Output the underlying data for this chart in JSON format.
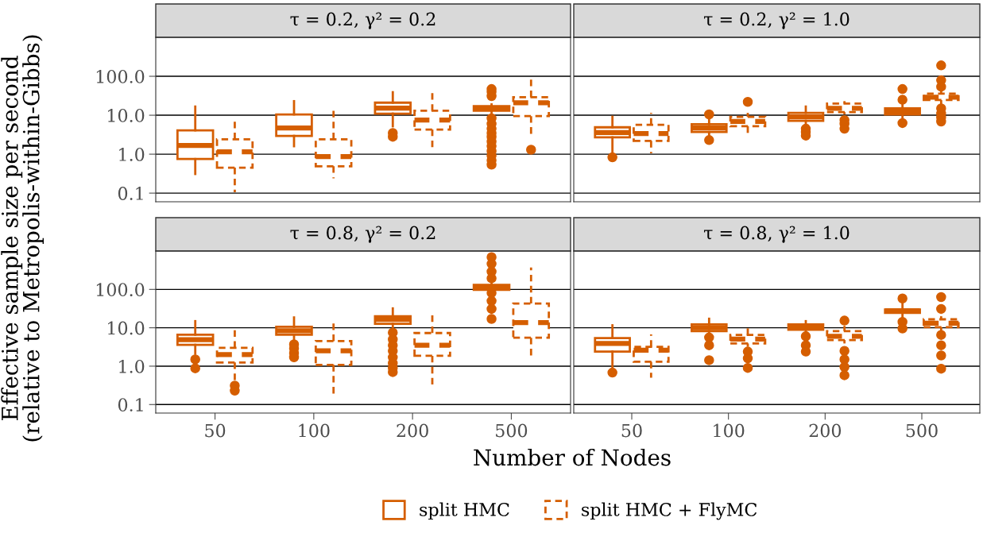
{
  "chart_data": [
    {
      "type": "box",
      "title": "τ = 0.2, γ² = 0.2",
      "ylabel": "Effective sample size per second\n(relative to Metropolis-within-Gibbs)",
      "categories": [
        "50",
        "100",
        "200",
        "500"
      ],
      "log": "y",
      "ylim": [
        0.06,
        1000
      ],
      "yticks": [
        {
          "value": 0.1,
          "label": "0.1"
        },
        {
          "value": 1,
          "label": "1.0"
        },
        {
          "value": 10,
          "label": "10.0"
        },
        {
          "value": 100,
          "label": "100.0"
        }
      ],
      "grid": "y",
      "tick_labels": "y",
      "legend": "bottom",
      "series": [
        {
          "name": "split HMC",
          "color": "#d55e00",
          "line_style": "solid",
          "boxes": [
            {
              "low": 0.31,
              "q1": 0.75,
              "median": 1.68,
              "q3": 4.1,
              "high": 16.7
            },
            {
              "low": 1.6,
              "q1": 2.95,
              "median": 4.7,
              "q3": 10.5,
              "high": 23
            },
            {
              "low": 5.2,
              "q1": 11,
              "median": 15.2,
              "q3": 21,
              "high": 39,
              "outliers": [
                3.5,
                2.8
              ]
            },
            {
              "low": 11,
              "q1": 13,
              "median": 15,
              "q3": 17,
              "high": 19,
              "outliers": [
                47,
                40,
                31,
                8.3,
                6,
                4.5,
                3.5,
                2.8,
                2.1,
                1.6,
                1.2,
                0.91,
                0.7,
                0.54
              ]
            }
          ]
        },
        {
          "name": "split HMC + FlyMC",
          "color": "#d55e00",
          "line_style": "dashed",
          "boxes": [
            {
              "low": 0.105,
              "q1": 0.45,
              "median": 1.15,
              "q3": 2.4,
              "high": 8.3
            },
            {
              "low": 0.24,
              "q1": 0.49,
              "median": 0.87,
              "q3": 2.4,
              "high": 13
            },
            {
              "low": 1.3,
              "q1": 4.3,
              "median": 7.5,
              "q3": 13,
              "high": 37
            },
            {
              "low": 2.8,
              "q1": 9.5,
              "median": 21,
              "q3": 29,
              "high": 91,
              "outliers": [
                1.3
              ]
            }
          ]
        }
      ]
    },
    {
      "type": "box",
      "title": "τ = 0.2, γ² = 1.0",
      "categories": [
        "50",
        "100",
        "200",
        "500"
      ],
      "log": "y",
      "ylim": [
        0.06,
        1000
      ],
      "yticks": [
        0.1,
        1,
        10,
        100
      ],
      "grid": "y",
      "tick_labels": false,
      "series": [
        {
          "color": "#d55e00",
          "line_style": "solid",
          "boxes": [
            {
              "low": 1.1,
              "q1": 2.7,
              "median": 3.6,
              "q3": 4.9,
              "high": 9.1,
              "outliers": [
                0.83
              ]
            },
            {
              "low": 3,
              "q1": 3.7,
              "median": 4.7,
              "q3": 5.9,
              "high": 8,
              "outliers": [
                10.5,
                2.3
              ]
            },
            {
              "low": 5.2,
              "q1": 7.2,
              "median": 9.1,
              "q3": 11.5,
              "high": 16.7,
              "outliers": [
                4.5,
                3.7,
                3.0
              ]
            },
            {
              "low": 8.7,
              "q1": 10.5,
              "median": 12.6,
              "q3": 15,
              "high": 20,
              "outliers": [
                47,
                25,
                6.3
              ]
            }
          ]
        },
        {
          "color": "#d55e00",
          "line_style": "dashed",
          "boxes": [
            {
              "low": 1.05,
              "q1": 2.2,
              "median": 3.4,
              "q3": 5.7,
              "high": 11.5
            },
            {
              "low": 2.8,
              "q1": 5.2,
              "median": 6.9,
              "q3": 9.1,
              "high": 11.5,
              "outliers": [
                22
              ]
            },
            {
              "low": 10.5,
              "q1": 12,
              "median": 15,
              "q3": 20,
              "high": 23,
              "outliers": [
                7.5,
                6,
                4.5
              ]
            },
            {
              "low": 19,
              "q1": 24.5,
              "median": 29,
              "q3": 36,
              "high": 43,
              "outliers": [
                190,
                79,
                54,
                15,
                11,
                8.7,
                6.9
              ]
            }
          ]
        }
      ]
    },
    {
      "type": "box",
      "title": "τ = 0.8, γ² = 0.2",
      "xlabel": "Number of Nodes",
      "categories": [
        "50",
        "100",
        "200",
        "500"
      ],
      "log": "y",
      "ylim": [
        0.06,
        1000
      ],
      "yticks": [
        {
          "value": 0.1,
          "label": "0.1"
        },
        {
          "value": 1,
          "label": "1.0"
        },
        {
          "value": 10,
          "label": "10.0"
        },
        {
          "value": 100,
          "label": "100.0"
        }
      ],
      "grid": "y",
      "series": [
        {
          "color": "#d55e00",
          "line_style": "solid",
          "boxes": [
            {
              "low": 2.1,
              "q1": 3.6,
              "median": 4.9,
              "q3": 6.6,
              "high": 14.9,
              "outliers": [
                1.5,
                0.88
              ]
            },
            {
              "low": 5.0,
              "q1": 6.6,
              "median": 8.4,
              "q3": 10.6,
              "high": 18.6,
              "outliers": [
                3.7,
                2.9,
                2.2,
                1.7
              ]
            },
            {
              "low": 9.5,
              "q1": 12.7,
              "median": 16.6,
              "q3": 20,
              "high": 32,
              "outliers": [
                7.5,
                5,
                3.5,
                2.5,
                1.7,
                1.2,
                0.9,
                0.7
              ]
            },
            {
              "low": 88,
              "q1": 98,
              "median": 115,
              "q3": 131,
              "high": 166,
              "outliers": [
                690,
                465,
                290,
                195,
                81,
                50,
                31,
                17
              ]
            }
          ]
        },
        {
          "color": "#d55e00",
          "line_style": "dashed",
          "boxes": [
            {
              "low": 0.4,
              "q1": 1.25,
              "median": 2.0,
              "q3": 3.0,
              "high": 10,
              "outliers": [
                0.31,
                0.23
              ]
            },
            {
              "low": 0.19,
              "q1": 1.08,
              "median": 2.5,
              "q3": 4.5,
              "high": 13
            },
            {
              "low": 0.32,
              "q1": 1.86,
              "median": 3.5,
              "q3": 7.3,
              "high": 23.5
            },
            {
              "low": 1.66,
              "q1": 5.5,
              "median": 13.7,
              "q3": 43,
              "high": 370
            }
          ]
        }
      ]
    },
    {
      "type": "box",
      "title": "τ = 0.8, γ² = 1.0",
      "categories": [
        "50",
        "100",
        "200",
        "500"
      ],
      "log": "y",
      "ylim": [
        0.06,
        1000
      ],
      "yticks": [
        0.1,
        1,
        10,
        100
      ],
      "grid": "y",
      "tick_labels": "x",
      "series": [
        {
          "color": "#d55e00",
          "line_style": "solid",
          "boxes": [
            {
              "low": 0.86,
              "q1": 2.4,
              "median": 3.9,
              "q3": 5.4,
              "high": 11.6,
              "outliers": [
                0.68
              ]
            },
            {
              "low": 6.5,
              "q1": 8.2,
              "median": 10,
              "q3": 12.2,
              "high": 17.2,
              "outliers": [
                5.6,
                3.5,
                1.43
              ]
            },
            {
              "low": 7.6,
              "q1": 8.9,
              "median": 10.4,
              "q3": 12.2,
              "high": 14.9,
              "outliers": [
                6,
                3.5,
                2.4
              ]
            },
            {
              "low": 19.5,
              "q1": 24.5,
              "median": 27.5,
              "q3": 30,
              "high": 45,
              "outliers": [
                58,
                14.3,
                9.6
              ]
            }
          ]
        },
        {
          "color": "#d55e00",
          "line_style": "dashed",
          "boxes": [
            {
              "low": 0.5,
              "q1": 1.3,
              "median": 2.6,
              "q3": 3.2,
              "high": 6.7
            },
            {
              "low": 3.2,
              "q1": 3.9,
              "median": 5.1,
              "q3": 6.5,
              "high": 11.2,
              "outliers": [
                2.4,
                1.6,
                0.9
              ]
            },
            {
              "low": 3.9,
              "q1": 4.8,
              "median": 6,
              "q3": 8.2,
              "high": 11.2,
              "outliers": [
                15.4,
                2.5,
                1.5,
                0.95,
                0.58
              ]
            },
            {
              "low": 8.2,
              "q1": 10.4,
              "median": 13.1,
              "q3": 16.6,
              "high": 20,
              "outliers": [
                63,
                31,
                6.5,
                3.5,
                1.9,
                0.86
              ]
            }
          ]
        }
      ]
    }
  ]
}
